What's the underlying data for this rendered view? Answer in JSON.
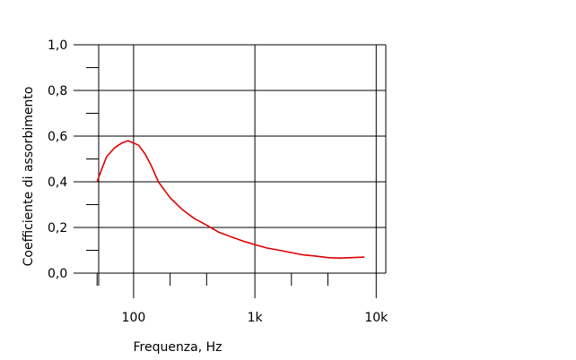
{
  "chart_data": {
    "type": "line",
    "title": "",
    "xlabel": "Frequenza, Hz",
    "ylabel": "Coefficiente di assorbimento",
    "x_scale": "log",
    "xlim": [
      32,
      12000
    ],
    "ylim": [
      0,
      1
    ],
    "x_ticks": [
      {
        "value": 100,
        "label": "100"
      },
      {
        "value": 1000,
        "label": "1k"
      },
      {
        "value": 10000,
        "label": "10k"
      }
    ],
    "y_ticks": [
      {
        "value": 0,
        "label": "0,0"
      },
      {
        "value": 0.2,
        "label": "0,2"
      },
      {
        "value": 0.4,
        "label": "0,4"
      },
      {
        "value": 0.6,
        "label": "0,6"
      },
      {
        "value": 0.8,
        "label": "0,8"
      },
      {
        "value": 1.0,
        "label": "1,0"
      }
    ],
    "x_minor_ticks": [
      50,
      200,
      400,
      2000,
      4000
    ],
    "y_minor_ticks": [
      0.1,
      0.3,
      0.5,
      0.7,
      0.9
    ],
    "x_gridlines": [
      100,
      1000,
      10000
    ],
    "y_gridlines": [
      0.2,
      0.4,
      0.6,
      0.8,
      1.0
    ],
    "grid": true,
    "legend": "none",
    "series": [
      {
        "color": "#e00000",
        "x": [
          50,
          55,
          60,
          70,
          80,
          90,
          100,
          110,
          125,
          140,
          160,
          200,
          250,
          315,
          400,
          500,
          630,
          800,
          1000,
          1250,
          1600,
          2000,
          2500,
          3150,
          4000,
          5000,
          6300,
          8000
        ],
        "y": [
          0.4,
          0.46,
          0.51,
          0.55,
          0.57,
          0.58,
          0.57,
          0.56,
          0.52,
          0.47,
          0.4,
          0.33,
          0.28,
          0.24,
          0.21,
          0.18,
          0.16,
          0.14,
          0.125,
          0.11,
          0.1,
          0.09,
          0.08,
          0.075,
          0.068,
          0.066,
          0.068,
          0.07
        ]
      }
    ]
  }
}
